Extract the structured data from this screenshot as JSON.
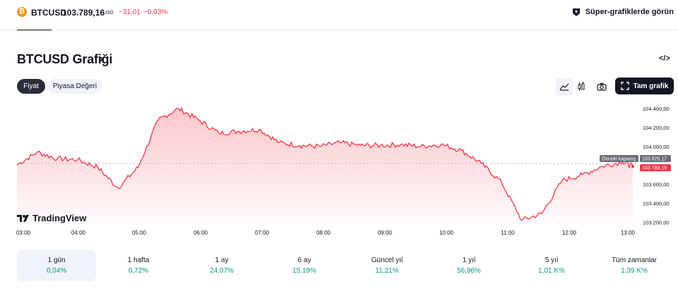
{
  "ticker": {
    "coin_glyph": "₿",
    "symbol": "BTCUSD",
    "price": "103.789,16",
    "unit": "USD",
    "change": "−31,01",
    "change_pct": "−0,03%",
    "change_color": "#f23645"
  },
  "super_link": {
    "label": "Süper-grafiklerde görün",
    "icon": "supercharts-icon"
  },
  "header": {
    "title": "BTCUSD Grafiği",
    "arrow": "›",
    "embed_label": "</>"
  },
  "tabs": [
    {
      "label": "Fiyat",
      "active": true
    },
    {
      "label": "Piyasa Değeri",
      "active": false
    }
  ],
  "toolbar": {
    "area_icon": "area-chart-icon",
    "candle_icon": "candlestick-icon",
    "camera_icon": "camera-icon",
    "full_chart_label": "Tam grafik",
    "full_chart_icon": "fullscreen-icon"
  },
  "chart_data": {
    "type": "area",
    "series": [
      {
        "name": "BTCUSD",
        "color": "#f23645"
      }
    ],
    "x": [
      "03:00",
      "03:20",
      "03:40",
      "04:00",
      "04:20",
      "04:40",
      "05:00",
      "05:20",
      "05:40",
      "06:00",
      "06:20",
      "06:40",
      "07:00",
      "07:20",
      "07:40",
      "08:00",
      "08:20",
      "08:40",
      "09:00",
      "09:20",
      "09:40",
      "10:00",
      "10:20",
      "10:40",
      "11:00",
      "11:20",
      "11:40",
      "12:00",
      "12:20",
      "12:40",
      "13:00",
      "13:10"
    ],
    "y": [
      103805,
      103940,
      103870,
      103860,
      103780,
      103560,
      103780,
      104280,
      104400,
      104280,
      104140,
      104160,
      104180,
      104040,
      104010,
      104000,
      104040,
      104010,
      104010,
      104020,
      104000,
      104020,
      103960,
      103820,
      103620,
      103220,
      103290,
      103640,
      103700,
      103790,
      103840,
      103789.16
    ],
    "y_ticks": [
      "104.400,00",
      "104.200,00",
      "104.000,00",
      "103.600,00",
      "103.400,00",
      "103.200,00"
    ],
    "y_tick_values": [
      104400,
      104200,
      104000,
      103600,
      103400,
      103200
    ],
    "ylim": [
      103180,
      104460
    ],
    "x_ticks": [
      "03:00",
      "04:00",
      "05:00",
      "06:00",
      "07:00",
      "08:00",
      "09:00",
      "10:00",
      "11:00",
      "12:00",
      "13:00"
    ],
    "previous_close": {
      "label": "Önceki kapanış",
      "value": "103.820,17",
      "y": 103820.17
    },
    "last_price": {
      "value": "103.789,16",
      "y": 103789.16
    },
    "watermark": "TradingView",
    "grid": false
  },
  "periods": [
    {
      "label": "1 gün",
      "value": "0,04%",
      "active": true
    },
    {
      "label": "1 hafta",
      "value": "0,72%",
      "active": false
    },
    {
      "label": "1 ay",
      "value": "24,07%",
      "active": false
    },
    {
      "label": "6 ay",
      "value": "15,19%",
      "active": false
    },
    {
      "label": "Güncel yıl",
      "value": "11,21%",
      "active": false
    },
    {
      "label": "1 yıl",
      "value": "56,96%",
      "active": false
    },
    {
      "label": "5 yıl",
      "value": "1,01 K%",
      "active": false
    },
    {
      "label": "Tüm zamanlar",
      "value": "1,39 K%",
      "active": false
    }
  ],
  "colors": {
    "accent": "#131722",
    "up": "#089981",
    "down": "#f23645"
  }
}
